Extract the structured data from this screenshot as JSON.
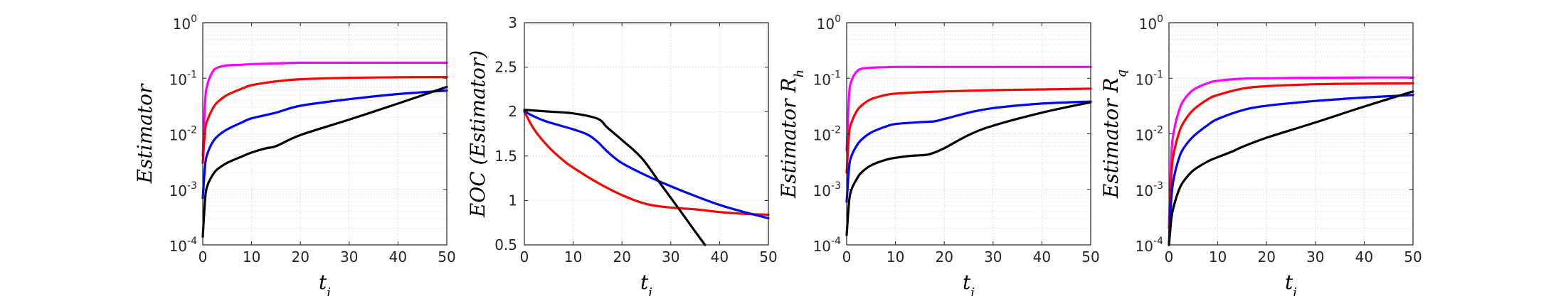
{
  "chart_data": [
    {
      "type": "line",
      "xlabel": "t_i",
      "ylabel": "Estimator",
      "xlim": [
        0,
        50
      ],
      "ylim": [
        0.0001,
        1
      ],
      "yscale": "log",
      "xticks": [
        "0",
        "10",
        "20",
        "30",
        "40",
        "50"
      ],
      "yticks": [
        {
          "base": "10",
          "exp": "0"
        },
        {
          "base": "10",
          "exp": "-1"
        },
        {
          "base": "10",
          "exp": "-2"
        },
        {
          "base": "10",
          "exp": "-3"
        },
        {
          "base": "10",
          "exp": "-4"
        }
      ],
      "grid": true,
      "series": [
        {
          "color": "#ff00ff",
          "x": [
            0,
            0.5,
            1,
            2,
            3,
            5,
            8,
            10,
            15,
            20,
            30,
            40,
            50
          ],
          "y": [
            0.004,
            0.04,
            0.08,
            0.13,
            0.155,
            0.17,
            0.175,
            0.18,
            0.185,
            0.19,
            0.19,
            0.19,
            0.19
          ]
        },
        {
          "color": "#ff0000",
          "x": [
            0,
            0.5,
            1,
            2,
            3,
            5,
            8,
            10,
            15,
            20,
            30,
            40,
            50
          ],
          "y": [
            0.003,
            0.012,
            0.018,
            0.028,
            0.037,
            0.05,
            0.065,
            0.075,
            0.088,
            0.096,
            0.102,
            0.104,
            0.105
          ]
        },
        {
          "color": "#0000ff",
          "x": [
            0,
            0.5,
            1,
            2,
            3,
            5,
            8,
            10,
            15,
            20,
            30,
            40,
            50
          ],
          "y": [
            0.0007,
            0.0028,
            0.0045,
            0.007,
            0.009,
            0.012,
            0.016,
            0.019,
            0.024,
            0.032,
            0.042,
            0.052,
            0.06
          ]
        },
        {
          "color": "#000000",
          "x": [
            0,
            0.5,
            1,
            2,
            3,
            5,
            8,
            10,
            13,
            15,
            20,
            30,
            40,
            50
          ],
          "y": [
            0.00014,
            0.0007,
            0.0012,
            0.0018,
            0.0023,
            0.003,
            0.0039,
            0.0046,
            0.0055,
            0.006,
            0.0095,
            0.018,
            0.035,
            0.07
          ]
        }
      ]
    },
    {
      "type": "line",
      "xlabel": "t_i",
      "ylabel": "EOC (Estimator)",
      "xlim": [
        0,
        50
      ],
      "ylim": [
        0.5,
        3
      ],
      "yscale": "linear",
      "xticks": [
        "0",
        "10",
        "20",
        "30",
        "40",
        "50"
      ],
      "yticks": [
        "3",
        "2.5",
        "2",
        "1.5",
        "1",
        "0.5"
      ],
      "grid": true,
      "series": [
        {
          "color": "#ff0000",
          "x": [
            0,
            2,
            5,
            8,
            10,
            15,
            20,
            25,
            30,
            35,
            40,
            45,
            50
          ],
          "y": [
            2.0,
            1.8,
            1.6,
            1.45,
            1.37,
            1.2,
            1.06,
            0.96,
            0.92,
            0.9,
            0.87,
            0.85,
            0.84
          ]
        },
        {
          "color": "#0000ff",
          "x": [
            0,
            3,
            5,
            10,
            13,
            15,
            17,
            20,
            25,
            30,
            35,
            40,
            45,
            50
          ],
          "y": [
            2.0,
            1.92,
            1.88,
            1.8,
            1.74,
            1.66,
            1.55,
            1.42,
            1.28,
            1.16,
            1.05,
            0.95,
            0.87,
            0.8
          ]
        },
        {
          "color": "#000000",
          "x": [
            0,
            5,
            10,
            15,
            17,
            20,
            24,
            28,
            32,
            35,
            37
          ],
          "y": [
            2.02,
            2.0,
            1.98,
            1.92,
            1.82,
            1.68,
            1.48,
            1.18,
            0.88,
            0.65,
            0.5
          ]
        }
      ]
    },
    {
      "type": "line",
      "xlabel": "t_i",
      "ylabel": "Estimator R_h",
      "xlim": [
        0,
        50
      ],
      "ylim": [
        0.0001,
        1
      ],
      "yscale": "log",
      "xticks": [
        "0",
        "10",
        "20",
        "30",
        "40",
        "50"
      ],
      "yticks": [
        {
          "base": "10",
          "exp": "0"
        },
        {
          "base": "10",
          "exp": "-1"
        },
        {
          "base": "10",
          "exp": "-2"
        },
        {
          "base": "10",
          "exp": "-3"
        },
        {
          "base": "10",
          "exp": "-4"
        }
      ],
      "grid": true,
      "series": [
        {
          "color": "#ff00ff",
          "x": [
            0,
            0.5,
            1,
            2,
            3,
            5,
            8,
            10,
            15,
            20,
            30,
            40,
            50
          ],
          "y": [
            0.005,
            0.05,
            0.09,
            0.13,
            0.148,
            0.155,
            0.158,
            0.16,
            0.16,
            0.16,
            0.16,
            0.16,
            0.16
          ]
        },
        {
          "color": "#ff0000",
          "x": [
            0,
            0.5,
            1,
            2,
            3,
            5,
            8,
            10,
            15,
            20,
            30,
            40,
            50
          ],
          "y": [
            0.002,
            0.01,
            0.016,
            0.025,
            0.032,
            0.042,
            0.05,
            0.053,
            0.056,
            0.058,
            0.061,
            0.063,
            0.065
          ]
        },
        {
          "color": "#0000ff",
          "x": [
            0,
            0.5,
            1,
            2,
            3,
            5,
            8,
            10,
            15,
            18,
            20,
            25,
            30,
            40,
            50
          ],
          "y": [
            0.0006,
            0.0025,
            0.004,
            0.006,
            0.0078,
            0.0105,
            0.0135,
            0.015,
            0.0162,
            0.0168,
            0.0185,
            0.024,
            0.029,
            0.035,
            0.038
          ]
        },
        {
          "color": "#000000",
          "x": [
            0,
            0.5,
            1,
            2,
            3,
            5,
            8,
            10,
            13,
            15,
            17,
            20,
            25,
            30,
            40,
            50
          ],
          "y": [
            0.00015,
            0.0006,
            0.001,
            0.0015,
            0.002,
            0.0027,
            0.0034,
            0.0037,
            0.004,
            0.0041,
            0.0043,
            0.0055,
            0.0095,
            0.014,
            0.024,
            0.037
          ]
        }
      ]
    },
    {
      "type": "line",
      "xlabel": "t_i",
      "ylabel": "Estimator R_q",
      "xlim": [
        0,
        50
      ],
      "ylim": [
        0.0001,
        1
      ],
      "yscale": "log",
      "xticks": [
        "0",
        "10",
        "20",
        "30",
        "40",
        "50"
      ],
      "yticks": [
        {
          "base": "10",
          "exp": "0"
        },
        {
          "base": "10",
          "exp": "-1"
        },
        {
          "base": "10",
          "exp": "-2"
        },
        {
          "base": "10",
          "exp": "-3"
        },
        {
          "base": "10",
          "exp": "-4"
        }
      ],
      "grid": true,
      "series": [
        {
          "color": "#ff00ff",
          "x": [
            0,
            0.5,
            1,
            2,
            3,
            5,
            8,
            10,
            15,
            20,
            30,
            40,
            50
          ],
          "y": [
            0.0002,
            0.004,
            0.011,
            0.025,
            0.04,
            0.062,
            0.082,
            0.09,
            0.098,
            0.1,
            0.102,
            0.103,
            0.103
          ]
        },
        {
          "color": "#ff0000",
          "x": [
            0,
            0.5,
            1,
            2,
            3,
            5,
            8,
            10,
            15,
            20,
            30,
            40,
            50
          ],
          "y": [
            0.0001,
            0.0018,
            0.0045,
            0.01,
            0.016,
            0.027,
            0.042,
            0.05,
            0.065,
            0.072,
            0.078,
            0.08,
            0.081
          ]
        },
        {
          "color": "#0000ff",
          "x": [
            0,
            0.5,
            1,
            2,
            3,
            5,
            8,
            10,
            15,
            20,
            30,
            40,
            50
          ],
          "y": [
            0.0001,
            0.0007,
            0.0016,
            0.0035,
            0.0055,
            0.009,
            0.0145,
            0.0185,
            0.0265,
            0.032,
            0.039,
            0.045,
            0.05
          ]
        },
        {
          "color": "#000000",
          "x": [
            0,
            0.5,
            1,
            2,
            3,
            5,
            8,
            10,
            13,
            15,
            20,
            30,
            40,
            50
          ],
          "y": [
            0.0001,
            0.0003,
            0.0005,
            0.00095,
            0.0014,
            0.0022,
            0.0032,
            0.0038,
            0.0048,
            0.0058,
            0.0085,
            0.016,
            0.031,
            0.058
          ]
        }
      ]
    }
  ]
}
